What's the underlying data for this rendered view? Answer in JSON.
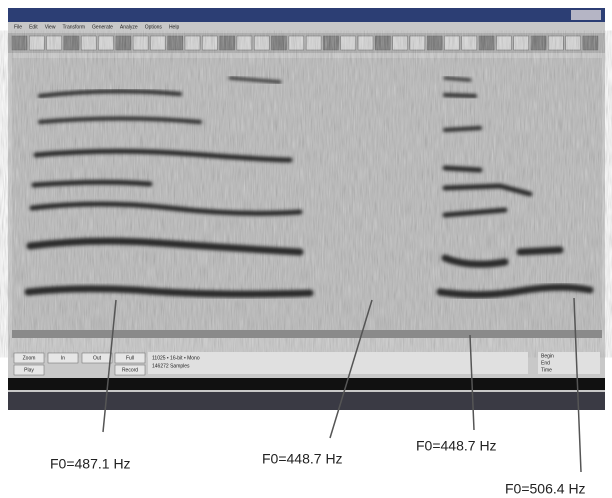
{
  "menu": [
    "File",
    "Edit",
    "View",
    "Transform",
    "Generate",
    "Analyze",
    "Options",
    "Help"
  ],
  "buttons": [
    "Zoom",
    "In",
    "Out",
    "Full",
    "Play",
    "Record"
  ],
  "status": {
    "format": "11025 • 16-bit • Mono",
    "samples": "146272 Samples",
    "begin": "Begin",
    "end": "End",
    "time": "Time"
  },
  "annotations": [
    "F0=487.1 Hz",
    "F0=448.7 Hz",
    "F0=448.7 Hz",
    "F0=506.4 Hz"
  ]
}
